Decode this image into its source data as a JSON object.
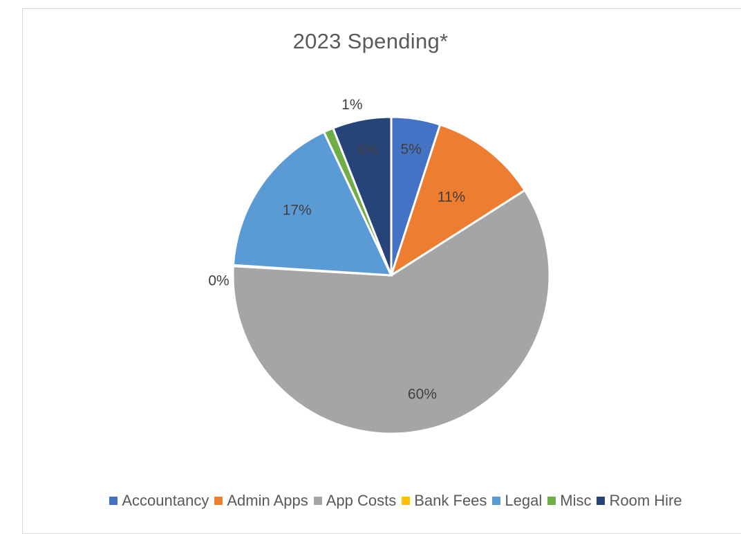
{
  "chart_data": {
    "type": "pie",
    "title": "2023 Spending*",
    "legend_position": "bottom",
    "slices": [
      {
        "name": "Accountancy",
        "percent": 5,
        "label": "5%",
        "color": "#4472c4"
      },
      {
        "name": "Admin Apps",
        "percent": 11,
        "label": "11%",
        "color": "#ed7d31"
      },
      {
        "name": "App Costs",
        "percent": 60,
        "label": "60%",
        "color": "#a5a5a5"
      },
      {
        "name": "Bank Fees",
        "percent": 0.1,
        "label": "0%",
        "color": "#ffc000"
      },
      {
        "name": "Legal",
        "percent": 17,
        "label": "17%",
        "color": "#5b9bd5"
      },
      {
        "name": "Misc",
        "percent": 1,
        "label": "1%",
        "color": "#70ad47"
      },
      {
        "name": "Room Hire",
        "percent": 6,
        "label": "6%",
        "color": "#264478"
      }
    ]
  }
}
